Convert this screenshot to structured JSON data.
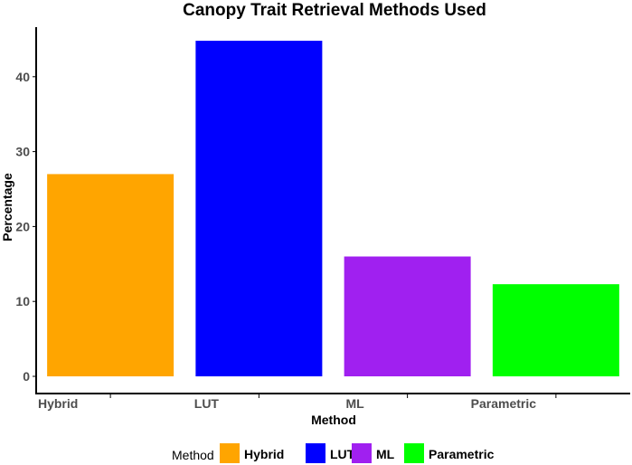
{
  "chart_data": {
    "type": "bar",
    "title": "Canopy Trait Retrieval Methods Used",
    "xlabel": "Method",
    "ylabel": "Percentage",
    "categories": [
      "Hybrid",
      "LUT",
      "ML",
      "Parametric"
    ],
    "values": [
      27,
      44.8,
      16,
      12.3
    ],
    "colors": [
      "#FFA500",
      "#0000FF",
      "#A020F0",
      "#00FF00"
    ],
    "ylim": [
      0,
      45
    ],
    "yticks": [
      0,
      10,
      20,
      30,
      40
    ],
    "grid": false,
    "legend": {
      "title": "Method",
      "position": "bottom",
      "entries": [
        "Hybrid",
        "LUT",
        "ML",
        "Parametric"
      ]
    }
  }
}
